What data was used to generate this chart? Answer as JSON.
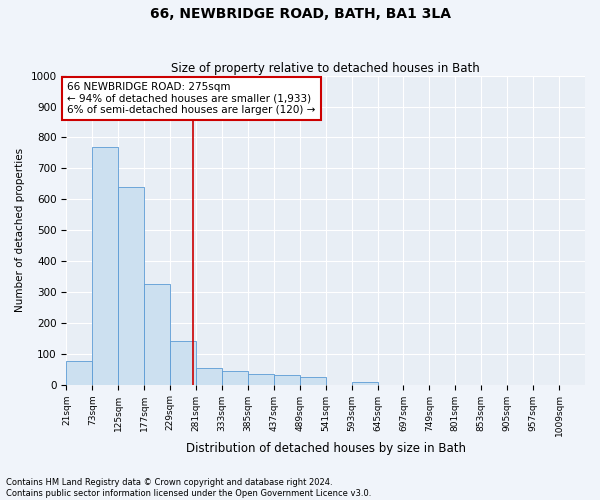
{
  "title": "66, NEWBRIDGE ROAD, BATH, BA1 3LA",
  "subtitle": "Size of property relative to detached houses in Bath",
  "xlabel": "Distribution of detached houses by size in Bath",
  "ylabel": "Number of detached properties",
  "bin_edges": [
    21,
    73,
    125,
    177,
    229,
    281,
    333,
    385,
    437,
    489,
    541,
    593,
    645,
    697,
    749,
    801,
    853,
    905,
    957,
    1009,
    1061
  ],
  "bar_heights": [
    75,
    770,
    640,
    325,
    140,
    55,
    45,
    35,
    30,
    25,
    0,
    10,
    0,
    0,
    0,
    0,
    0,
    0,
    0,
    0
  ],
  "bar_color": "#cce0f0",
  "bar_edge_color": "#5b9bd5",
  "ref_line_x": 275,
  "ref_line_color": "#cc0000",
  "annotation_text": "66 NEWBRIDGE ROAD: 275sqm\n← 94% of detached houses are smaller (1,933)\n6% of semi-detached houses are larger (120) →",
  "annotation_box_color": "#cc0000",
  "ylim": [
    0,
    1000
  ],
  "yticks": [
    0,
    100,
    200,
    300,
    400,
    500,
    600,
    700,
    800,
    900,
    1000
  ],
  "footer_line1": "Contains HM Land Registry data © Crown copyright and database right 2024.",
  "footer_line2": "Contains public sector information licensed under the Open Government Licence v3.0.",
  "fig_bg_color": "#f0f4fa",
  "plot_bg_color": "#e8eef5"
}
